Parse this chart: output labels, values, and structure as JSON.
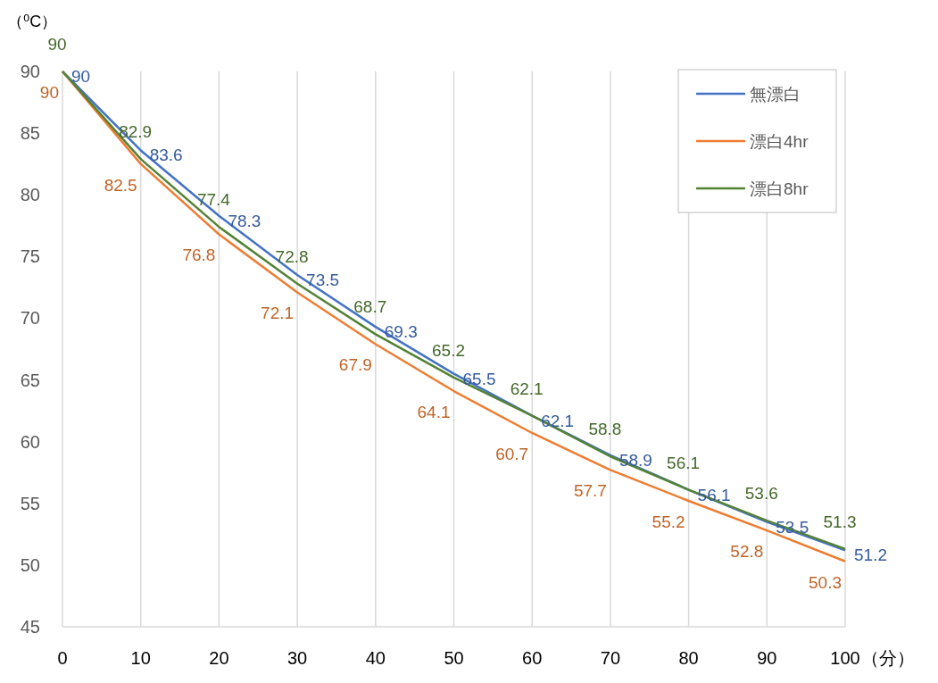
{
  "chart_data": {
    "type": "line",
    "ylabel": "（⁰C）",
    "xlabel": "（分）",
    "x": [
      0,
      10,
      20,
      30,
      40,
      50,
      60,
      70,
      80,
      90,
      100
    ],
    "series": [
      {
        "name": "無漂白",
        "color": "#4472c4",
        "values": [
          90,
          83.6,
          78.3,
          73.5,
          69.3,
          65.5,
          62.1,
          58.9,
          56.1,
          53.5,
          51.2
        ]
      },
      {
        "name": "漂白4hr",
        "color": "#ed7d31",
        "values": [
          90,
          82.5,
          76.8,
          72.1,
          67.9,
          64.1,
          60.7,
          57.7,
          55.2,
          52.8,
          50.3
        ]
      },
      {
        "name": "漂白8hr",
        "color": "#548235",
        "values": [
          90,
          82.9,
          77.4,
          72.8,
          68.7,
          65.2,
          62.1,
          58.8,
          56.1,
          53.6,
          51.3
        ]
      }
    ],
    "xlim": [
      0,
      100
    ],
    "xticks": [
      0,
      10,
      20,
      30,
      40,
      50,
      60,
      70,
      80,
      90,
      100
    ],
    "ylim": [
      45,
      90
    ],
    "yticks": [
      45,
      50,
      55,
      60,
      65,
      70,
      75,
      80,
      85,
      90
    ],
    "grid": "x",
    "legend": "top right",
    "data_labels": true
  }
}
